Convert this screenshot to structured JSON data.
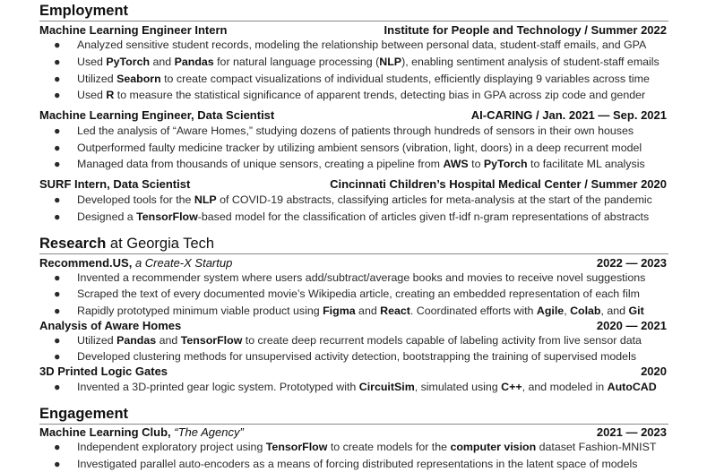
{
  "employment": {
    "title": "Employment",
    "entries": [
      {
        "role": "Machine Learning Engineer Intern",
        "org": "Institute for People and Technology",
        "dates": "Summer 2022",
        "bullets": [
          [
            "Analyzed sensitive student records, modeling the relationship between personal data, student-staff emails, and GPA"
          ],
          [
            "Used ",
            {
              "b": "PyTorch"
            },
            " and ",
            {
              "b": "Pandas"
            },
            " for natural language processing (",
            {
              "b": "NLP"
            },
            "), enabling sentiment analysis of student-staff emails"
          ],
          [
            "Utilized ",
            {
              "b": "Seaborn"
            },
            " to create compact visualizations of individual students, efficiently displaying 9 variables across time"
          ],
          [
            "Used ",
            {
              "b": "R"
            },
            " to measure the statistical significance of apparent trends, detecting bias in GPA across zip code and gender"
          ]
        ]
      },
      {
        "role": "Machine Learning Engineer, Data Scientist",
        "org": "AI-CARING",
        "dates": "Jan. 2021 — Sep. 2021",
        "bullets": [
          [
            "Led the analysis of “Aware Homes,” studying dozens of patients through hundreds of sensors in their own houses"
          ],
          [
            "Outperformed faulty medicine tracker by utilizing ambient sensors (vibration, light, doors) in a deep recurrent model"
          ],
          [
            "Managed data from thousands of unique sensors, creating a pipeline from ",
            {
              "b": "AWS"
            },
            " to ",
            {
              "b": "PyTorch"
            },
            " to facilitate ML analysis"
          ]
        ]
      },
      {
        "role": "SURF Intern, Data Scientist",
        "org": "Cincinnati Children’s Hospital Medical Center",
        "dates": "Summer 2020",
        "bullets": [
          [
            "Developed tools for the ",
            {
              "b": "NLP"
            },
            " of COVID-19 abstracts, classifying articles for meta-analysis at the start of the pandemic"
          ],
          [
            "Designed a ",
            {
              "b": "TensorFlow"
            },
            "-based model for the classification of articles given tf-idf n-gram representations of abstracts"
          ]
        ]
      }
    ]
  },
  "research": {
    "title": "Research",
    "title_suffix": " at Georgia Tech",
    "entries": [
      {
        "role": "Recommend.US,",
        "subtitle": "a Create-X Startup",
        "dates": "2022 — 2023",
        "bullets": [
          [
            "Invented a recommender system where users add/subtract/average books and movies to receive novel suggestions"
          ],
          [
            "Scraped the text of every documented movie’s Wikipedia article, creating an embedded representation of each film"
          ],
          [
            "Rapidly prototyped minimum viable product using ",
            {
              "b": "Figma"
            },
            " and ",
            {
              "b": "React"
            },
            ". Coordinated efforts with ",
            {
              "b": "Agile"
            },
            ", ",
            {
              "b": "Colab"
            },
            ", and ",
            {
              "b": "Git"
            }
          ]
        ]
      },
      {
        "role": "Analysis of Aware Homes",
        "dates": "2020 — 2021",
        "bullets": [
          [
            "Utilized ",
            {
              "b": "Pandas"
            },
            " and ",
            {
              "b": "TensorFlow"
            },
            " to create deep recurrent models capable of labeling activity from live sensor data"
          ],
          [
            "Developed clustering methods for unsupervised activity detection, bootstrapping the training of supervised models"
          ]
        ]
      },
      {
        "role": "3D Printed Logic Gates",
        "dates": "2020",
        "bullets": [
          [
            "Invented a 3D-printed gear logic system. Prototyped with ",
            {
              "b": "CircuitSim"
            },
            ", simulated using ",
            {
              "b": "C++"
            },
            ", and modeled in ",
            {
              "b": "AutoCAD"
            }
          ]
        ]
      }
    ]
  },
  "engagement": {
    "title": "Engagement",
    "entries": [
      {
        "role": "Machine Learning Club,",
        "subtitle": "“The Agency”",
        "dates": "2021 — 2023",
        "bullets": [
          [
            "Independent exploratory project using ",
            {
              "b": "TensorFlow"
            },
            " to create models for the ",
            {
              "b": "computer vision"
            },
            " dataset Fashion-MNIST"
          ],
          [
            "Investigated parallel auto-encoders as a means of forcing distributed representations in the latent space of models"
          ]
        ]
      }
    ]
  },
  "bullet_glyph": "●",
  "org_separator": " / "
}
